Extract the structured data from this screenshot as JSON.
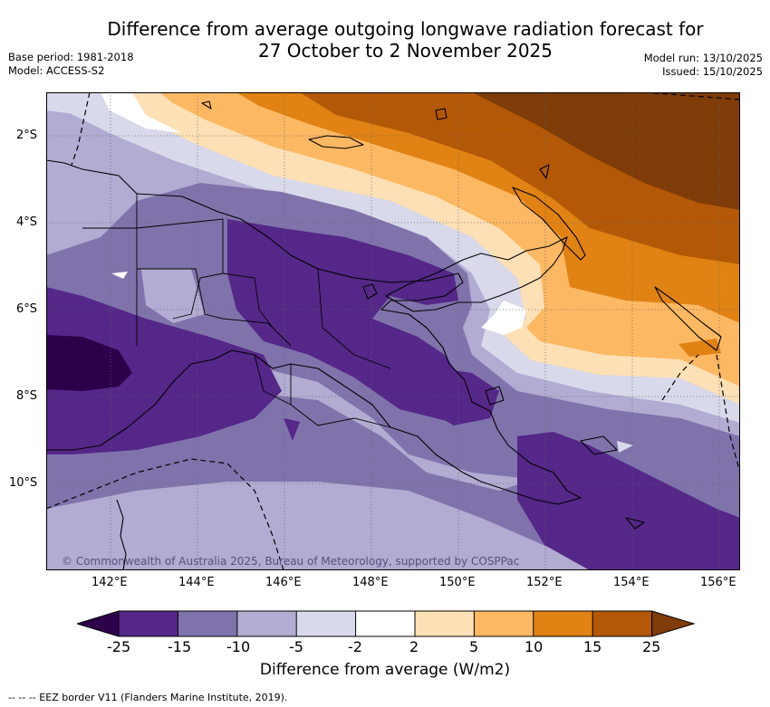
{
  "title": {
    "line1": "Difference from average outgoing longwave radiation forecast for",
    "line2": "27 October to 2 November 2025"
  },
  "meta": {
    "base_period": "Base period: 1981-2018",
    "model": "Model: ACCESS-S2",
    "model_run": "Model run: 13/10/2025",
    "issued": "Issued: 15/10/2025"
  },
  "map": {
    "lat_labels": [
      "2°S",
      "4°S",
      "6°S",
      "8°S",
      "10°S"
    ],
    "lon_labels": [
      "142°E",
      "144°E",
      "146°E",
      "148°E",
      "150°E",
      "152°E",
      "154°E",
      "156°E"
    ],
    "copyright": "© Commonwealth of Australia 2025, Bureau of Meteorology, supported by COSPPac"
  },
  "colorbar": {
    "ticks": [
      "-25",
      "-15",
      "-10",
      "-5",
      "-2",
      "2",
      "5",
      "10",
      "15",
      "25"
    ],
    "label": "Difference from average (W/m2)",
    "colors": {
      "min_ext": "#2d004b",
      "n25_15": "#542788",
      "n15_10": "#8073ac",
      "n10_5": "#b2abd2",
      "n5_2": "#d8daeb",
      "n2_2": "#ffffff",
      "p2_5": "#fee0b6",
      "p5_10": "#fdb863",
      "p10_15": "#e08214",
      "p15_25": "#b35806",
      "max_ext": "#7f3b08"
    }
  },
  "footnote": "-- -- -- EEZ border V11 (Flanders Marine Institute, 2019)."
}
